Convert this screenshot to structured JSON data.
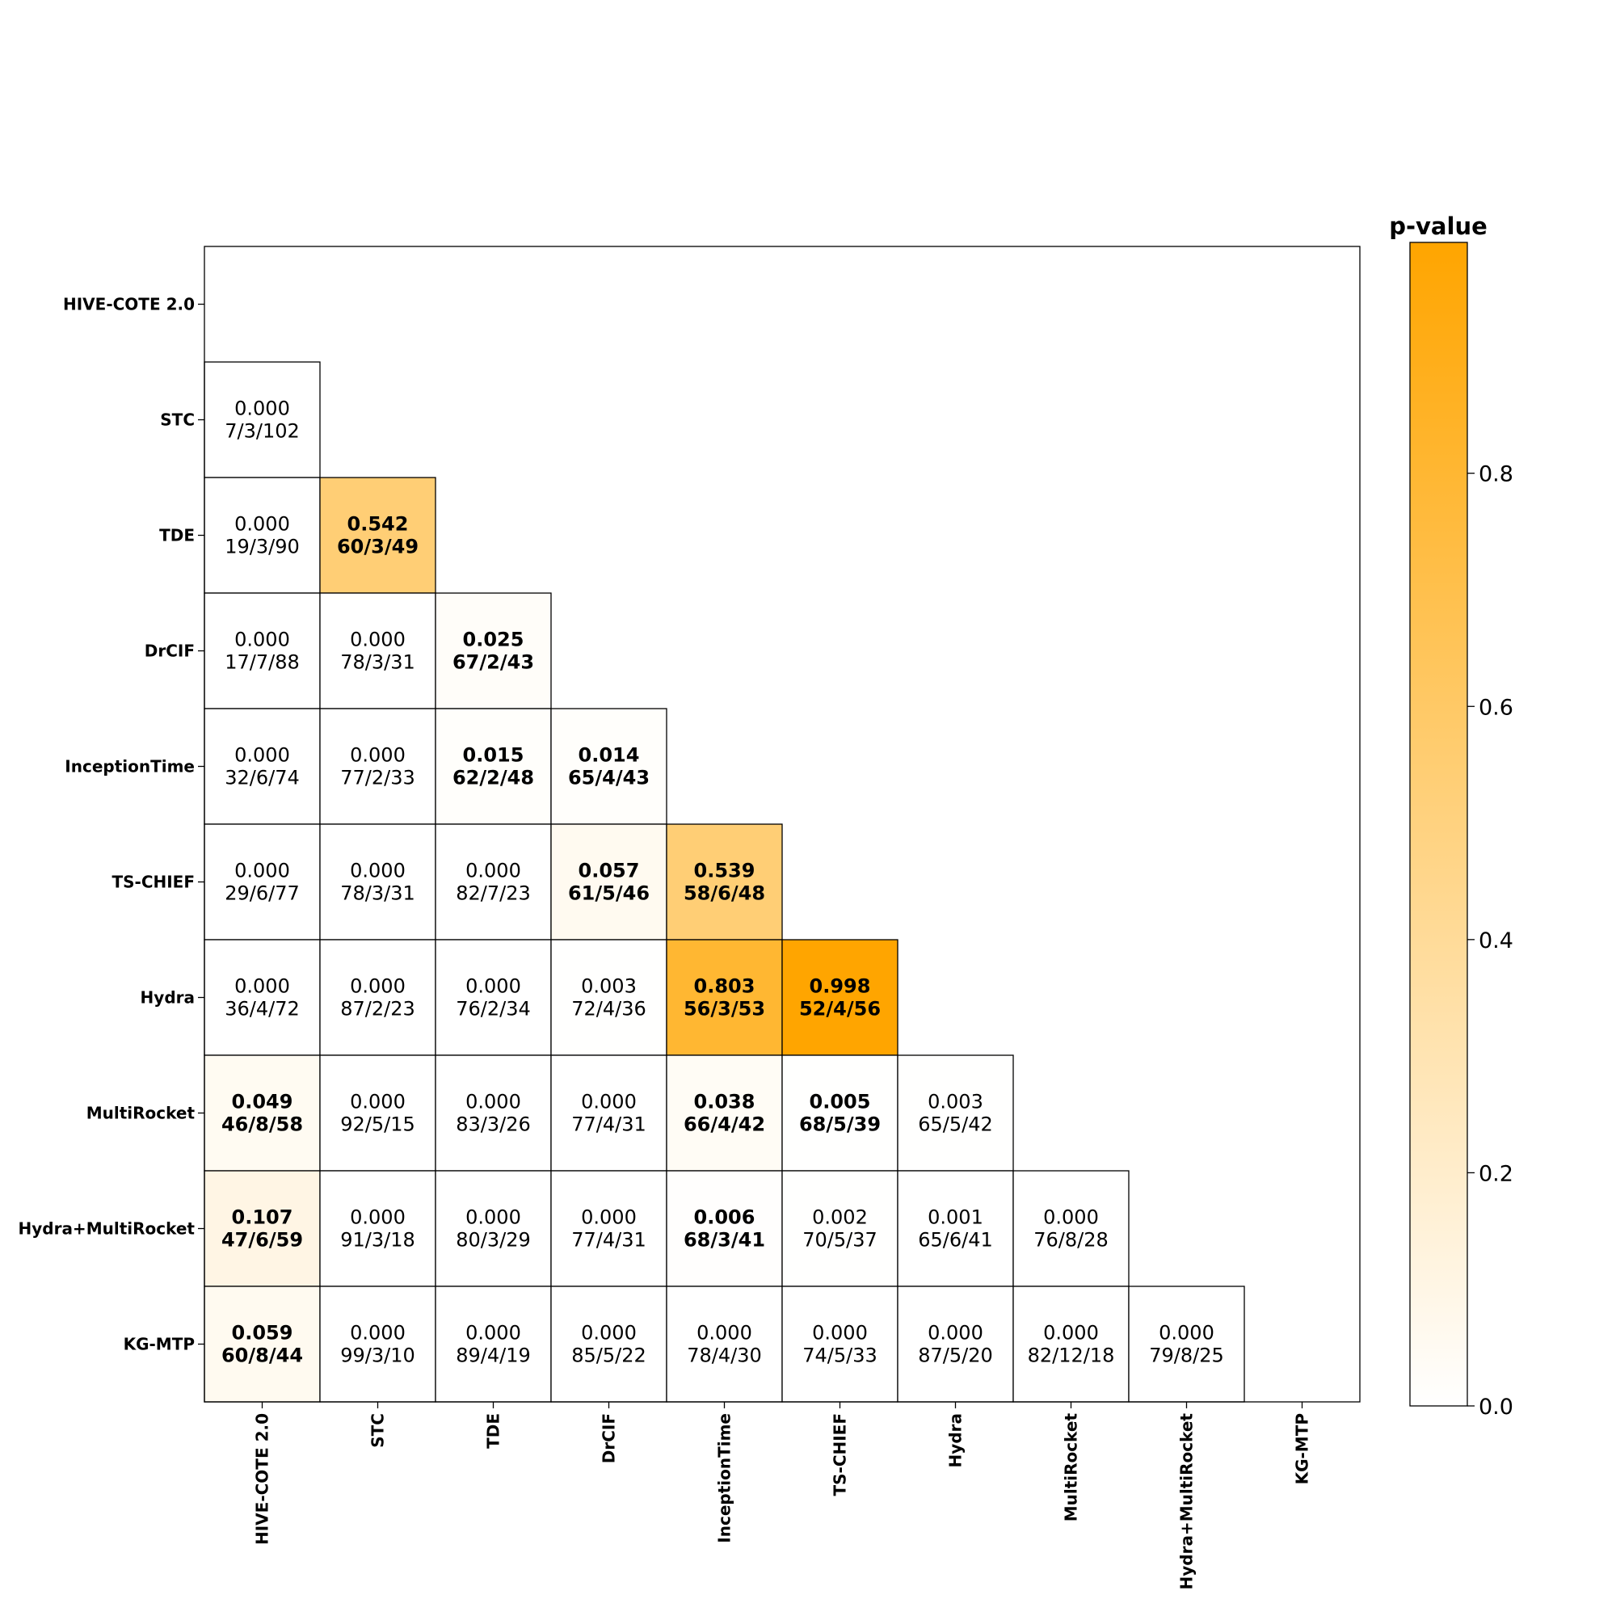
{
  "chart_data": {
    "type": "heatmap",
    "title": "",
    "xlabel": "",
    "ylabel": "",
    "rows": [
      "HIVE-COTE 2.0",
      "STC",
      "TDE",
      "DrCIF",
      "InceptionTime",
      "TS-CHIEF",
      "Hydra",
      "MultiRocket",
      "Hydra+MultiRocket",
      "KG-MTP"
    ],
    "columns": [
      "HIVE-COTE 2.0",
      "STC",
      "TDE",
      "DrCIF",
      "InceptionTime",
      "TS-CHIEF",
      "Hydra",
      "MultiRocket",
      "Hydra+MultiRocket",
      "KG-MTP"
    ],
    "cells": [
      {
        "row": 1,
        "col": 0,
        "p": "0.000",
        "wdl": "7/3/102",
        "bold": false
      },
      {
        "row": 2,
        "col": 0,
        "p": "0.000",
        "wdl": "19/3/90",
        "bold": false
      },
      {
        "row": 2,
        "col": 1,
        "p": "0.542",
        "wdl": "60/3/49",
        "bold": true
      },
      {
        "row": 3,
        "col": 0,
        "p": "0.000",
        "wdl": "17/7/88",
        "bold": false
      },
      {
        "row": 3,
        "col": 1,
        "p": "0.000",
        "wdl": "78/3/31",
        "bold": false
      },
      {
        "row": 3,
        "col": 2,
        "p": "0.025",
        "wdl": "67/2/43",
        "bold": true
      },
      {
        "row": 4,
        "col": 0,
        "p": "0.000",
        "wdl": "32/6/74",
        "bold": false
      },
      {
        "row": 4,
        "col": 1,
        "p": "0.000",
        "wdl": "77/2/33",
        "bold": false
      },
      {
        "row": 4,
        "col": 2,
        "p": "0.015",
        "wdl": "62/2/48",
        "bold": true
      },
      {
        "row": 4,
        "col": 3,
        "p": "0.014",
        "wdl": "65/4/43",
        "bold": true
      },
      {
        "row": 5,
        "col": 0,
        "p": "0.000",
        "wdl": "29/6/77",
        "bold": false
      },
      {
        "row": 5,
        "col": 1,
        "p": "0.000",
        "wdl": "78/3/31",
        "bold": false
      },
      {
        "row": 5,
        "col": 2,
        "p": "0.000",
        "wdl": "82/7/23",
        "bold": false
      },
      {
        "row": 5,
        "col": 3,
        "p": "0.057",
        "wdl": "61/5/46",
        "bold": true
      },
      {
        "row": 5,
        "col": 4,
        "p": "0.539",
        "wdl": "58/6/48",
        "bold": true
      },
      {
        "row": 6,
        "col": 0,
        "p": "0.000",
        "wdl": "36/4/72",
        "bold": false
      },
      {
        "row": 6,
        "col": 1,
        "p": "0.000",
        "wdl": "87/2/23",
        "bold": false
      },
      {
        "row": 6,
        "col": 2,
        "p": "0.000",
        "wdl": "76/2/34",
        "bold": false
      },
      {
        "row": 6,
        "col": 3,
        "p": "0.003",
        "wdl": "72/4/36",
        "bold": false
      },
      {
        "row": 6,
        "col": 4,
        "p": "0.803",
        "wdl": "56/3/53",
        "bold": true
      },
      {
        "row": 6,
        "col": 5,
        "p": "0.998",
        "wdl": "52/4/56",
        "bold": true
      },
      {
        "row": 7,
        "col": 0,
        "p": "0.049",
        "wdl": "46/8/58",
        "bold": true
      },
      {
        "row": 7,
        "col": 1,
        "p": "0.000",
        "wdl": "92/5/15",
        "bold": false
      },
      {
        "row": 7,
        "col": 2,
        "p": "0.000",
        "wdl": "83/3/26",
        "bold": false
      },
      {
        "row": 7,
        "col": 3,
        "p": "0.000",
        "wdl": "77/4/31",
        "bold": false
      },
      {
        "row": 7,
        "col": 4,
        "p": "0.038",
        "wdl": "66/4/42",
        "bold": true
      },
      {
        "row": 7,
        "col": 5,
        "p": "0.005",
        "wdl": "68/5/39",
        "bold": true
      },
      {
        "row": 7,
        "col": 6,
        "p": "0.003",
        "wdl": "65/5/42",
        "bold": false
      },
      {
        "row": 8,
        "col": 0,
        "p": "0.107",
        "wdl": "47/6/59",
        "bold": true
      },
      {
        "row": 8,
        "col": 1,
        "p": "0.000",
        "wdl": "91/3/18",
        "bold": false
      },
      {
        "row": 8,
        "col": 2,
        "p": "0.000",
        "wdl": "80/3/29",
        "bold": false
      },
      {
        "row": 8,
        "col": 3,
        "p": "0.000",
        "wdl": "77/4/31",
        "bold": false
      },
      {
        "row": 8,
        "col": 4,
        "p": "0.006",
        "wdl": "68/3/41",
        "bold": true
      },
      {
        "row": 8,
        "col": 5,
        "p": "0.002",
        "wdl": "70/5/37",
        "bold": false
      },
      {
        "row": 8,
        "col": 6,
        "p": "0.001",
        "wdl": "65/6/41",
        "bold": false
      },
      {
        "row": 8,
        "col": 7,
        "p": "0.000",
        "wdl": "76/8/28",
        "bold": false
      },
      {
        "row": 9,
        "col": 0,
        "p": "0.059",
        "wdl": "60/8/44",
        "bold": true
      },
      {
        "row": 9,
        "col": 1,
        "p": "0.000",
        "wdl": "99/3/10",
        "bold": false
      },
      {
        "row": 9,
        "col": 2,
        "p": "0.000",
        "wdl": "89/4/19",
        "bold": false
      },
      {
        "row": 9,
        "col": 3,
        "p": "0.000",
        "wdl": "85/5/22",
        "bold": false
      },
      {
        "row": 9,
        "col": 4,
        "p": "0.000",
        "wdl": "78/4/30",
        "bold": false
      },
      {
        "row": 9,
        "col": 5,
        "p": "0.000",
        "wdl": "74/5/33",
        "bold": false
      },
      {
        "row": 9,
        "col": 6,
        "p": "0.000",
        "wdl": "87/5/20",
        "bold": false
      },
      {
        "row": 9,
        "col": 7,
        "p": "0.000",
        "wdl": "82/12/18",
        "bold": false
      },
      {
        "row": 9,
        "col": 8,
        "p": "0.000",
        "wdl": "79/8/25",
        "bold": false
      }
    ],
    "colorbar": {
      "title": "p-value",
      "range": [
        0,
        0.998
      ],
      "ticks": [
        "0.0",
        "0.2",
        "0.4",
        "0.6",
        "0.8"
      ],
      "tick_values": [
        0,
        0.2,
        0.4,
        0.6,
        0.8
      ],
      "color_low": "#ffffff",
      "color_high": "#ffa500"
    }
  }
}
